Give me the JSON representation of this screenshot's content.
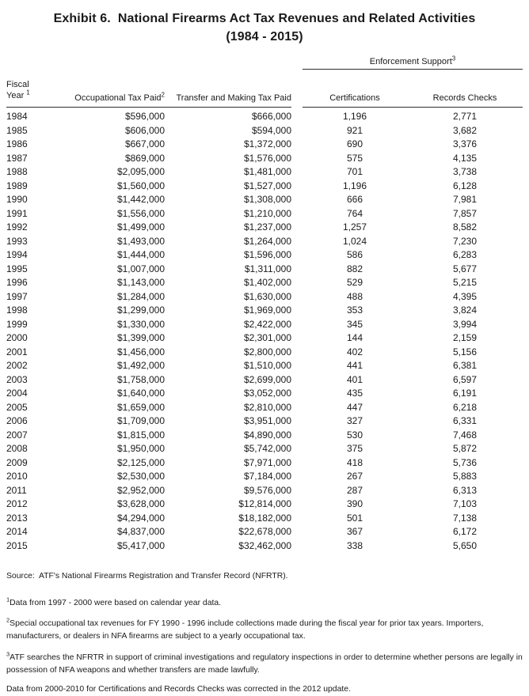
{
  "title": {
    "line1": "Exhibit 6.  National Firearms Act Tax Revenues and Related Activities",
    "line2": "(1984 - 2015)"
  },
  "table": {
    "enforcement_header": {
      "label": "Enforcement Support",
      "sup": "3"
    },
    "headers": {
      "fiscal_line1": "Fiscal",
      "fiscal_line2": "Year ",
      "fiscal_sup": "1",
      "occupational": "Occupational Tax Paid",
      "occupational_sup": "2",
      "transfer": "Transfer and Making Tax Paid",
      "certifications": "Certifications",
      "records_checks": "Records Checks"
    },
    "rows": [
      [
        "1984",
        "$596,000",
        "$666,000",
        "1,196",
        "2,771"
      ],
      [
        "1985",
        "$606,000",
        "$594,000",
        "921",
        "3,682"
      ],
      [
        "1986",
        "$667,000",
        "$1,372,000",
        "690",
        "3,376"
      ],
      [
        "1987",
        "$869,000",
        "$1,576,000",
        "575",
        "4,135"
      ],
      [
        "1988",
        "$2,095,000",
        "$1,481,000",
        "701",
        "3,738"
      ],
      [
        "1989",
        "$1,560,000",
        "$1,527,000",
        "1,196",
        "6,128"
      ],
      [
        "1990",
        "$1,442,000",
        "$1,308,000",
        "666",
        "7,981"
      ],
      [
        "1991",
        "$1,556,000",
        "$1,210,000",
        "764",
        "7,857"
      ],
      [
        "1992",
        "$1,499,000",
        "$1,237,000",
        "1,257",
        "8,582"
      ],
      [
        "1993",
        "$1,493,000",
        "$1,264,000",
        "1,024",
        "7,230"
      ],
      [
        "1994",
        "$1,444,000",
        "$1,596,000",
        "586",
        "6,283"
      ],
      [
        "1995",
        "$1,007,000",
        "$1,311,000",
        "882",
        "5,677"
      ],
      [
        "1996",
        "$1,143,000",
        "$1,402,000",
        "529",
        "5,215"
      ],
      [
        "1997",
        "$1,284,000",
        "$1,630,000",
        "488",
        "4,395"
      ],
      [
        "1998",
        "$1,299,000",
        "$1,969,000",
        "353",
        "3,824"
      ],
      [
        "1999",
        "$1,330,000",
        "$2,422,000",
        "345",
        "3,994"
      ],
      [
        "2000",
        "$1,399,000",
        "$2,301,000",
        "144",
        "2,159"
      ],
      [
        "2001",
        "$1,456,000",
        "$2,800,000",
        "402",
        "5,156"
      ],
      [
        "2002",
        "$1,492,000",
        "$1,510,000",
        "441",
        "6,381"
      ],
      [
        "2003",
        "$1,758,000",
        "$2,699,000",
        "401",
        "6,597"
      ],
      [
        "2004",
        "$1,640,000",
        "$3,052,000",
        "435",
        "6,191"
      ],
      [
        "2005",
        "$1,659,000",
        "$2,810,000",
        "447",
        "6,218"
      ],
      [
        "2006",
        "$1,709,000",
        "$3,951,000",
        "327",
        "6,331"
      ],
      [
        "2007",
        "$1,815,000",
        "$4,890,000",
        "530",
        "7,468"
      ],
      [
        "2008",
        "$1,950,000",
        "$5,742,000",
        "375",
        "5,872"
      ],
      [
        "2009",
        "$2,125,000",
        "$7,971,000",
        "418",
        "5,736"
      ],
      [
        "2010",
        "$2,530,000",
        "$7,184,000",
        "267",
        "5,883"
      ],
      [
        "2011",
        "$2,952,000",
        "$9,576,000",
        "287",
        "6,313"
      ],
      [
        "2012",
        "$3,628,000",
        "$12,814,000",
        "390",
        "7,103"
      ],
      [
        "2013",
        "$4,294,000",
        "$18,182,000",
        "501",
        "7,138"
      ],
      [
        "2014",
        "$4,837,000",
        "$22,678,000",
        "367",
        "6,172"
      ],
      [
        "2015",
        "$5,417,000",
        "$32,462,000",
        "338",
        "5,650"
      ]
    ]
  },
  "notes": {
    "source": "Source:  ATF's National Firearms Registration and Transfer Record (NFRTR).",
    "footnote1": {
      "sup": "1",
      "text": "Data from 1997 - 2000 were based on calendar year data."
    },
    "footnote2": {
      "sup": "2",
      "text": "Special occupational tax revenues for FY 1990 - 1996 include collections made during the fiscal year for prior tax years. Importers, manufacturers, or dealers in NFA firearms are subject to a yearly occupational tax."
    },
    "footnote3": {
      "sup": "3",
      "text": "ATF searches the NFRTR in support of criminal investigations and regulatory inspections in order to determine whether persons are legally in possession of NFA weapons and whether transfers are made lawfully."
    },
    "correction": "Data from 2000-2010 for Certifications and Records Checks was corrected in the 2012 update."
  },
  "colors": {
    "text": "#1a1a1a",
    "rule": "#2e2e2e",
    "background": "#ffffff"
  }
}
